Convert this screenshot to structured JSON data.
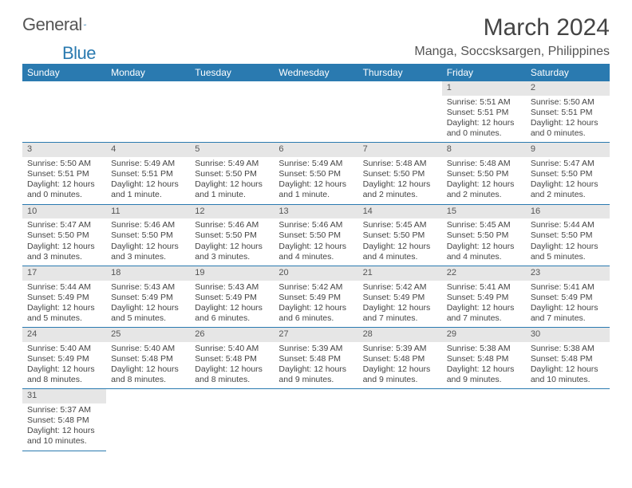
{
  "brand": {
    "part1": "General",
    "part2": "Blue"
  },
  "title": "March 2024",
  "subtitle": "Manga, Soccsksargen, Philippines",
  "colors": {
    "header_bg": "#2a7ab0",
    "header_text": "#ffffff",
    "daynum_bg": "#e6e6e6",
    "rule": "#2a7ab0",
    "body_text": "#444444",
    "title_text": "#444444"
  },
  "typography": {
    "title_size_pt": 22,
    "subtitle_size_pt": 12,
    "cell_size_pt": 8,
    "header_size_pt": 9
  },
  "layout": {
    "columns": 7,
    "rows": 6
  },
  "days_of_week": [
    "Sunday",
    "Monday",
    "Tuesday",
    "Wednesday",
    "Thursday",
    "Friday",
    "Saturday"
  ],
  "weeks": [
    [
      null,
      null,
      null,
      null,
      null,
      {
        "n": "1",
        "sr": "Sunrise: 5:51 AM",
        "ss": "Sunset: 5:51 PM",
        "dl1": "Daylight: 12 hours",
        "dl2": "and 0 minutes."
      },
      {
        "n": "2",
        "sr": "Sunrise: 5:50 AM",
        "ss": "Sunset: 5:51 PM",
        "dl1": "Daylight: 12 hours",
        "dl2": "and 0 minutes."
      }
    ],
    [
      {
        "n": "3",
        "sr": "Sunrise: 5:50 AM",
        "ss": "Sunset: 5:51 PM",
        "dl1": "Daylight: 12 hours",
        "dl2": "and 0 minutes."
      },
      {
        "n": "4",
        "sr": "Sunrise: 5:49 AM",
        "ss": "Sunset: 5:51 PM",
        "dl1": "Daylight: 12 hours",
        "dl2": "and 1 minute."
      },
      {
        "n": "5",
        "sr": "Sunrise: 5:49 AM",
        "ss": "Sunset: 5:50 PM",
        "dl1": "Daylight: 12 hours",
        "dl2": "and 1 minute."
      },
      {
        "n": "6",
        "sr": "Sunrise: 5:49 AM",
        "ss": "Sunset: 5:50 PM",
        "dl1": "Daylight: 12 hours",
        "dl2": "and 1 minute."
      },
      {
        "n": "7",
        "sr": "Sunrise: 5:48 AM",
        "ss": "Sunset: 5:50 PM",
        "dl1": "Daylight: 12 hours",
        "dl2": "and 2 minutes."
      },
      {
        "n": "8",
        "sr": "Sunrise: 5:48 AM",
        "ss": "Sunset: 5:50 PM",
        "dl1": "Daylight: 12 hours",
        "dl2": "and 2 minutes."
      },
      {
        "n": "9",
        "sr": "Sunrise: 5:47 AM",
        "ss": "Sunset: 5:50 PM",
        "dl1": "Daylight: 12 hours",
        "dl2": "and 2 minutes."
      }
    ],
    [
      {
        "n": "10",
        "sr": "Sunrise: 5:47 AM",
        "ss": "Sunset: 5:50 PM",
        "dl1": "Daylight: 12 hours",
        "dl2": "and 3 minutes."
      },
      {
        "n": "11",
        "sr": "Sunrise: 5:46 AM",
        "ss": "Sunset: 5:50 PM",
        "dl1": "Daylight: 12 hours",
        "dl2": "and 3 minutes."
      },
      {
        "n": "12",
        "sr": "Sunrise: 5:46 AM",
        "ss": "Sunset: 5:50 PM",
        "dl1": "Daylight: 12 hours",
        "dl2": "and 3 minutes."
      },
      {
        "n": "13",
        "sr": "Sunrise: 5:46 AM",
        "ss": "Sunset: 5:50 PM",
        "dl1": "Daylight: 12 hours",
        "dl2": "and 4 minutes."
      },
      {
        "n": "14",
        "sr": "Sunrise: 5:45 AM",
        "ss": "Sunset: 5:50 PM",
        "dl1": "Daylight: 12 hours",
        "dl2": "and 4 minutes."
      },
      {
        "n": "15",
        "sr": "Sunrise: 5:45 AM",
        "ss": "Sunset: 5:50 PM",
        "dl1": "Daylight: 12 hours",
        "dl2": "and 4 minutes."
      },
      {
        "n": "16",
        "sr": "Sunrise: 5:44 AM",
        "ss": "Sunset: 5:50 PM",
        "dl1": "Daylight: 12 hours",
        "dl2": "and 5 minutes."
      }
    ],
    [
      {
        "n": "17",
        "sr": "Sunrise: 5:44 AM",
        "ss": "Sunset: 5:49 PM",
        "dl1": "Daylight: 12 hours",
        "dl2": "and 5 minutes."
      },
      {
        "n": "18",
        "sr": "Sunrise: 5:43 AM",
        "ss": "Sunset: 5:49 PM",
        "dl1": "Daylight: 12 hours",
        "dl2": "and 5 minutes."
      },
      {
        "n": "19",
        "sr": "Sunrise: 5:43 AM",
        "ss": "Sunset: 5:49 PM",
        "dl1": "Daylight: 12 hours",
        "dl2": "and 6 minutes."
      },
      {
        "n": "20",
        "sr": "Sunrise: 5:42 AM",
        "ss": "Sunset: 5:49 PM",
        "dl1": "Daylight: 12 hours",
        "dl2": "and 6 minutes."
      },
      {
        "n": "21",
        "sr": "Sunrise: 5:42 AM",
        "ss": "Sunset: 5:49 PM",
        "dl1": "Daylight: 12 hours",
        "dl2": "and 7 minutes."
      },
      {
        "n": "22",
        "sr": "Sunrise: 5:41 AM",
        "ss": "Sunset: 5:49 PM",
        "dl1": "Daylight: 12 hours",
        "dl2": "and 7 minutes."
      },
      {
        "n": "23",
        "sr": "Sunrise: 5:41 AM",
        "ss": "Sunset: 5:49 PM",
        "dl1": "Daylight: 12 hours",
        "dl2": "and 7 minutes."
      }
    ],
    [
      {
        "n": "24",
        "sr": "Sunrise: 5:40 AM",
        "ss": "Sunset: 5:49 PM",
        "dl1": "Daylight: 12 hours",
        "dl2": "and 8 minutes."
      },
      {
        "n": "25",
        "sr": "Sunrise: 5:40 AM",
        "ss": "Sunset: 5:48 PM",
        "dl1": "Daylight: 12 hours",
        "dl2": "and 8 minutes."
      },
      {
        "n": "26",
        "sr": "Sunrise: 5:40 AM",
        "ss": "Sunset: 5:48 PM",
        "dl1": "Daylight: 12 hours",
        "dl2": "and 8 minutes."
      },
      {
        "n": "27",
        "sr": "Sunrise: 5:39 AM",
        "ss": "Sunset: 5:48 PM",
        "dl1": "Daylight: 12 hours",
        "dl2": "and 9 minutes."
      },
      {
        "n": "28",
        "sr": "Sunrise: 5:39 AM",
        "ss": "Sunset: 5:48 PM",
        "dl1": "Daylight: 12 hours",
        "dl2": "and 9 minutes."
      },
      {
        "n": "29",
        "sr": "Sunrise: 5:38 AM",
        "ss": "Sunset: 5:48 PM",
        "dl1": "Daylight: 12 hours",
        "dl2": "and 9 minutes."
      },
      {
        "n": "30",
        "sr": "Sunrise: 5:38 AM",
        "ss": "Sunset: 5:48 PM",
        "dl1": "Daylight: 12 hours",
        "dl2": "and 10 minutes."
      }
    ],
    [
      {
        "n": "31",
        "sr": "Sunrise: 5:37 AM",
        "ss": "Sunset: 5:48 PM",
        "dl1": "Daylight: 12 hours",
        "dl2": "and 10 minutes."
      },
      null,
      null,
      null,
      null,
      null,
      null
    ]
  ]
}
